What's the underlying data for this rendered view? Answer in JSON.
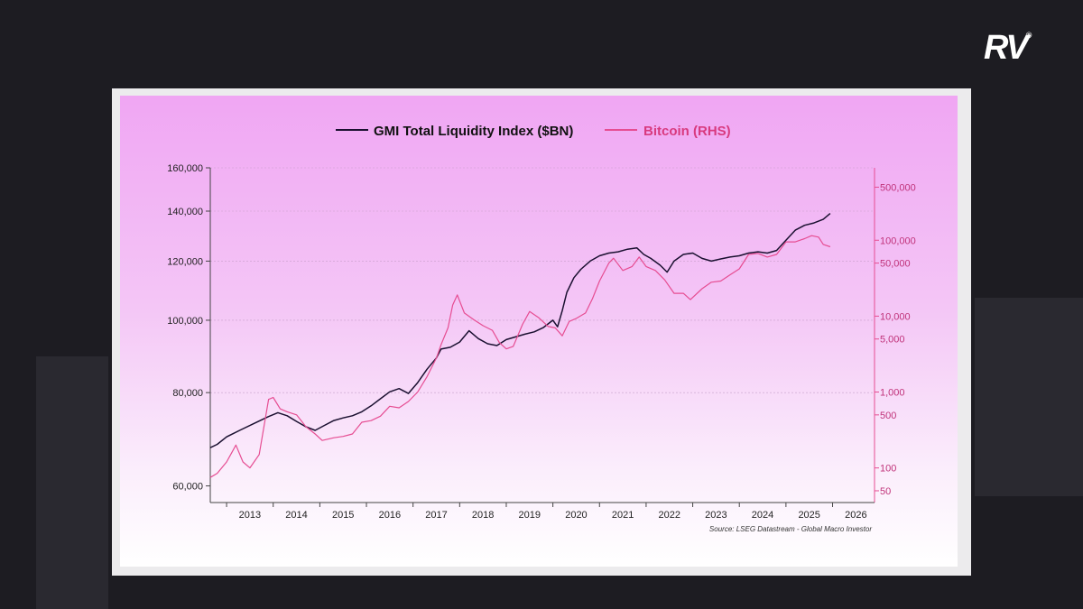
{
  "logo": {
    "text": "RV",
    "mark": "®"
  },
  "chart_data": {
    "type": "line",
    "title": "",
    "xlabel": "",
    "ylabel": "",
    "y_scale": "log",
    "y_ticks": [
      60000,
      80000,
      100000,
      120000,
      140000,
      160000
    ],
    "y_tick_labels": [
      "60,000",
      "80,000",
      "100,000",
      "120,000",
      "140,000",
      "160,000"
    ],
    "ylim": [
      57000,
      160000
    ],
    "y2_scale": "log",
    "y2_ticks": [
      50,
      100,
      500,
      1000,
      5000,
      10000,
      50000,
      100000,
      500000
    ],
    "y2_tick_labels": [
      "50",
      "100",
      "500",
      "1,000",
      "5,000",
      "10,000",
      "50,000",
      "100,000",
      "500,000"
    ],
    "y2lim": [
      35,
      900000
    ],
    "x_ticks": [
      "2013",
      "2014",
      "2015",
      "2016",
      "2017",
      "2018",
      "2019",
      "2020",
      "2021",
      "2022",
      "2023",
      "2024",
      "2025",
      "2026"
    ],
    "xlim": [
      2012.65,
      2026.9
    ],
    "grid": true,
    "legend_position": "top",
    "source": "Source: LSEG Datastream - Global Macro Investor",
    "series": [
      {
        "name": "GMI Total Liquidity Index ($BN)",
        "axis": "left",
        "color": "#1a1030",
        "x": [
          2012.65,
          2012.8,
          2013.0,
          2013.3,
          2013.6,
          2013.9,
          2014.1,
          2014.3,
          2014.5,
          2014.7,
          2014.9,
          2015.1,
          2015.3,
          2015.5,
          2015.7,
          2015.9,
          2016.1,
          2016.3,
          2016.5,
          2016.7,
          2016.9,
          2017.1,
          2017.3,
          2017.5,
          2017.6,
          2017.8,
          2018.0,
          2018.2,
          2018.4,
          2018.6,
          2018.8,
          2019.0,
          2019.2,
          2019.4,
          2019.6,
          2019.8,
          2020.0,
          2020.1,
          2020.2,
          2020.3,
          2020.45,
          2020.6,
          2020.8,
          2021.0,
          2021.2,
          2021.4,
          2021.6,
          2021.8,
          2021.95,
          2022.1,
          2022.3,
          2022.45,
          2022.6,
          2022.8,
          2023.0,
          2023.2,
          2023.4,
          2023.6,
          2023.8,
          2024.0,
          2024.2,
          2024.4,
          2024.6,
          2024.8,
          2025.0,
          2025.2,
          2025.4,
          2025.6,
          2025.8,
          2025.95
        ],
        "values": [
          67500,
          68200,
          69800,
          71300,
          72800,
          74300,
          75200,
          74500,
          73200,
          72000,
          71200,
          72300,
          73400,
          74000,
          74500,
          75400,
          76800,
          78500,
          80200,
          81000,
          79800,
          82500,
          86000,
          89000,
          91500,
          92000,
          93500,
          96800,
          94500,
          93000,
          92500,
          94200,
          95000,
          95800,
          96500,
          97800,
          100000,
          98000,
          103000,
          109000,
          114000,
          117000,
          120000,
          122000,
          123000,
          123500,
          124500,
          125000,
          122500,
          121000,
          118500,
          116000,
          120000,
          122500,
          123000,
          121000,
          120000,
          120800,
          121500,
          122000,
          123000,
          123500,
          123000,
          124000,
          128000,
          132000,
          134000,
          135000,
          136500,
          139000
        ]
      },
      {
        "name": "Bitcoin (RHS)",
        "axis": "right",
        "color": "#e64d92",
        "x": [
          2012.65,
          2012.8,
          2013.0,
          2013.2,
          2013.35,
          2013.5,
          2013.7,
          2013.9,
          2014.0,
          2014.15,
          2014.3,
          2014.5,
          2014.7,
          2014.9,
          2015.05,
          2015.3,
          2015.5,
          2015.7,
          2015.9,
          2016.1,
          2016.3,
          2016.5,
          2016.7,
          2016.9,
          2017.1,
          2017.3,
          2017.5,
          2017.6,
          2017.75,
          2017.85,
          2017.95,
          2018.1,
          2018.3,
          2018.5,
          2018.7,
          2018.85,
          2019.0,
          2019.15,
          2019.35,
          2019.5,
          2019.7,
          2019.9,
          2020.05,
          2020.2,
          2020.35,
          2020.5,
          2020.7,
          2020.85,
          2021.0,
          2021.2,
          2021.3,
          2021.5,
          2021.7,
          2021.85,
          2022.0,
          2022.2,
          2022.4,
          2022.6,
          2022.8,
          2022.95,
          2023.2,
          2023.4,
          2023.6,
          2023.8,
          2024.0,
          2024.2,
          2024.4,
          2024.6,
          2024.8,
          2025.0,
          2025.2,
          2025.4,
          2025.55,
          2025.7,
          2025.8,
          2025.95
        ],
        "values": [
          75,
          85,
          120,
          200,
          120,
          100,
          150,
          800,
          850,
          600,
          550,
          500,
          350,
          280,
          230,
          250,
          260,
          280,
          400,
          420,
          480,
          650,
          620,
          750,
          1000,
          1600,
          2800,
          4200,
          7000,
          14000,
          19000,
          11000,
          9000,
          7500,
          6500,
          4500,
          3700,
          4000,
          7800,
          11500,
          9500,
          7300,
          7000,
          5500,
          8500,
          9300,
          11000,
          17000,
          29000,
          50000,
          58000,
          40000,
          45000,
          60000,
          45000,
          40000,
          30000,
          20000,
          20000,
          16500,
          23000,
          28000,
          29000,
          35000,
          42000,
          65000,
          67000,
          60000,
          65000,
          95000,
          95000,
          105000,
          115000,
          110000,
          88000,
          82000
        ]
      }
    ]
  }
}
